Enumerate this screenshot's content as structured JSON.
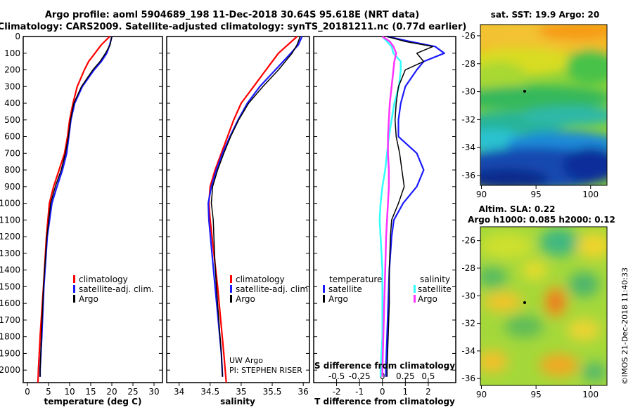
{
  "title": {
    "line1": "Argo profile: aoml 5904689_198 11-Dec-2018 30.64S 95.618E (NRT data)",
    "line2": "Climatology: CARS2009. Satellite-adjusted climatology: synTS_20181211.nc (0.77d earlier)"
  },
  "colors": {
    "climatology": "#ff0000",
    "satellite": "#1a1aff",
    "argo": "#000000",
    "sat_t": "#33ffff",
    "sat_s": "#ff33ff"
  },
  "chart_data": [
    {
      "type": "line",
      "name": "temperature",
      "xlabel": "temperature (deg C)",
      "xlim": [
        -1,
        32
      ],
      "ylim": [
        0,
        2075
      ],
      "xticks": [
        0,
        5,
        10,
        15,
        20,
        25,
        30
      ],
      "xtick_labels": [
        "0",
        "5",
        "10",
        "15",
        "20",
        "25",
        "30"
      ],
      "yticks": [
        0,
        100,
        200,
        300,
        400,
        500,
        600,
        700,
        800,
        900,
        1000,
        1100,
        1200,
        1300,
        1400,
        1500,
        1600,
        1700,
        1800,
        1900,
        2000
      ],
      "ytick_labels": [
        "0",
        "100",
        "200",
        "300",
        "400",
        "500",
        "600",
        "700",
        "800",
        "900",
        "1000",
        "1100",
        "1200",
        "1300",
        "1400",
        "1500",
        "1600",
        "1700",
        "1800",
        "1900",
        "2000"
      ],
      "legend": [
        "climatology",
        "satellite-adj. clim.",
        "Argo"
      ],
      "series": [
        {
          "name": "climatology",
          "depth": [
            0,
            50,
            100,
            150,
            200,
            300,
            400,
            500,
            600,
            700,
            800,
            900,
            1000,
            1200,
            1500,
            1800,
            2000,
            2075
          ],
          "values": [
            19.5,
            17.5,
            16.0,
            14.5,
            13.5,
            11.8,
            10.8,
            10.0,
            9.5,
            8.8,
            7.5,
            6.2,
            5.2,
            4.5,
            3.8,
            3.0,
            2.6,
            2.5
          ]
        },
        {
          "name": "satellite-adj. clim.",
          "depth": [
            0,
            50,
            100,
            150,
            200,
            300,
            400,
            500,
            600,
            700,
            800,
            900,
            1000,
            1200,
            1500,
            1800,
            2000,
            2040
          ],
          "values": [
            20.0,
            19.5,
            18.8,
            17.5,
            15.8,
            13.0,
            11.2,
            10.3,
            9.8,
            9.3,
            8.3,
            7.0,
            5.8,
            4.7,
            3.9,
            3.4,
            3.0,
            3.0
          ]
        },
        {
          "name": "Argo",
          "depth": [
            0,
            50,
            100,
            150,
            200,
            300,
            400,
            500,
            600,
            700,
            800,
            900,
            1000,
            1200,
            1500,
            1800,
            2000,
            2040
          ],
          "values": [
            20.0,
            19.6,
            18.5,
            17.2,
            15.5,
            12.8,
            11.0,
            10.2,
            9.7,
            9.0,
            8.0,
            6.6,
            5.5,
            4.6,
            3.8,
            3.3,
            3.0,
            3.0
          ]
        }
      ]
    },
    {
      "type": "line",
      "name": "salinity",
      "xlabel": "salinity",
      "xlim": [
        33.8,
        36.1
      ],
      "ylim": [
        0,
        2075
      ],
      "xticks": [
        34,
        34.5,
        35,
        35.5,
        36
      ],
      "xtick_labels": [
        "34",
        "34.5",
        "35",
        "35.5",
        "36"
      ],
      "legend": [
        "climatology",
        "satellite-adj. clim.",
        "Argo"
      ],
      "annotation": [
        "UW Argo",
        "PI: STEPHEN RISER"
      ],
      "series": [
        {
          "name": "climatology",
          "depth": [
            0,
            50,
            100,
            200,
            300,
            400,
            500,
            600,
            700,
            800,
            900,
            1000,
            1100,
            1300,
            1500,
            1700,
            1900,
            2075
          ],
          "values": [
            35.9,
            35.75,
            35.6,
            35.4,
            35.2,
            35.0,
            34.88,
            34.78,
            34.68,
            34.58,
            34.5,
            34.48,
            34.5,
            34.56,
            34.62,
            34.67,
            34.72,
            34.76
          ]
        },
        {
          "name": "satellite-adj. clim.",
          "depth": [
            0,
            50,
            100,
            200,
            300,
            400,
            500,
            600,
            700,
            800,
            900,
            1000,
            1100,
            1300,
            1500,
            1700,
            1900,
            2040
          ],
          "values": [
            35.98,
            35.92,
            35.8,
            35.55,
            35.3,
            35.1,
            34.95,
            34.82,
            34.7,
            34.6,
            34.52,
            34.47,
            34.48,
            34.53,
            34.58,
            34.63,
            34.68,
            34.7
          ]
        },
        {
          "name": "Argo",
          "depth": [
            0,
            50,
            100,
            200,
            300,
            400,
            500,
            600,
            700,
            800,
            900,
            1000,
            1100,
            1300,
            1500,
            1700,
            1900,
            2040
          ],
          "values": [
            35.95,
            35.9,
            35.82,
            35.6,
            35.35,
            35.12,
            34.96,
            34.83,
            34.72,
            34.62,
            34.54,
            34.52,
            34.55,
            34.57,
            34.6,
            34.64,
            34.68,
            34.7
          ]
        }
      ]
    },
    {
      "type": "line",
      "name": "difference",
      "xlabel": "T difference from climatology",
      "toplabel": "S difference from climatology",
      "xlim": [
        -3,
        3.2
      ],
      "ylim": [
        0,
        2075
      ],
      "xticks": [
        -2,
        -1,
        0,
        1,
        2
      ],
      "xtick_labels": [
        "-2",
        "-1",
        "0",
        "1",
        "2"
      ],
      "sticks": [
        -0.5,
        -0.25,
        0,
        0.25,
        0.5
      ],
      "stick_labels": [
        "-0.5",
        "-0.25",
        "0",
        "0.25",
        "0.5"
      ],
      "legend_t_title": "temperature",
      "legend_s_title": "salinity",
      "legend_labels": [
        "satellite",
        "Argo",
        "satellite",
        "Argo"
      ],
      "series": [
        {
          "name": "T satellite",
          "depth": [
            0,
            30,
            60,
            100,
            150,
            200,
            300,
            400,
            500,
            600,
            700,
            800,
            900,
            1000,
            1100,
            1200,
            1400,
            1600,
            1800,
            2000,
            2040
          ],
          "values": [
            0.2,
            1.2,
            2.3,
            2.7,
            1.8,
            1.5,
            1.0,
            0.8,
            0.7,
            0.7,
            1.5,
            1.8,
            1.5,
            0.9,
            0.5,
            0.4,
            0.3,
            0.25,
            0.2,
            0.15,
            0.15
          ]
        },
        {
          "name": "T Argo",
          "depth": [
            0,
            30,
            60,
            100,
            150,
            200,
            300,
            400,
            500,
            600,
            700,
            800,
            900,
            1000,
            1100,
            1200,
            1400,
            1600,
            1800,
            2000,
            2040
          ],
          "values": [
            0.2,
            1.0,
            2.2,
            1.5,
            1.8,
            1.0,
            0.7,
            0.6,
            0.55,
            0.6,
            0.75,
            0.85,
            0.95,
            0.7,
            0.4,
            0.35,
            0.3,
            0.3,
            0.25,
            0.2,
            0.2
          ]
        },
        {
          "name": "S satellite",
          "depth": [
            0,
            30,
            60,
            100,
            150,
            200,
            300,
            400,
            500,
            600,
            700,
            800,
            900,
            1000,
            1100,
            1200,
            1400,
            1600,
            1800,
            2000,
            2040
          ],
          "values": [
            0.0,
            0.05,
            0.1,
            0.12,
            0.2,
            0.2,
            0.18,
            0.13,
            0.1,
            0.07,
            0.05,
            0.03,
            0.0,
            -0.02,
            -0.03,
            -0.02,
            0.0,
            0.0,
            0.0,
            -0.02,
            -0.02
          ]
        },
        {
          "name": "S Argo",
          "depth": [
            0,
            30,
            60,
            100,
            150,
            200,
            300,
            400,
            500,
            600,
            700,
            800,
            900,
            1000,
            1100,
            1200,
            1400,
            1600,
            1800,
            2000,
            2040
          ],
          "values": [
            0.0,
            0.08,
            0.12,
            0.15,
            0.13,
            0.12,
            0.1,
            0.08,
            0.07,
            0.06,
            0.06,
            0.07,
            0.07,
            0.06,
            0.05,
            0.04,
            0.03,
            0.02,
            0.01,
            0.0,
            0.0
          ]
        }
      ]
    },
    {
      "type": "heatmap",
      "name": "satellite SST",
      "title": "sat. SST: 19.9 Argo: 20",
      "xlim": [
        89.9,
        101.5
      ],
      "ylim": [
        -36.7,
        -25.2
      ],
      "xticks": [
        90,
        95,
        100
      ],
      "xtick_labels": [
        "90",
        "95",
        "100"
      ],
      "yticks": [
        -26,
        -28,
        -30,
        -32,
        -34,
        -36
      ],
      "ytick_labels": [
        "-26",
        "-28",
        "-30",
        "-32",
        "-34",
        "-36"
      ]
    },
    {
      "type": "heatmap",
      "name": "altimetry SLA",
      "title1": "Altim. SLA: 0.22",
      "title2": "Argo h1000: 0.085 h2000: 0.12",
      "xlim": [
        89.9,
        101.5
      ],
      "ylim": [
        -36.5,
        -25.0
      ],
      "xticks": [
        90,
        95,
        100
      ],
      "xtick_labels": [
        "90",
        "95",
        "100"
      ],
      "yticks": [
        -26,
        -28,
        -30,
        -32,
        -34,
        -36
      ],
      "ytick_labels": [
        "-26",
        "-28",
        "-30",
        "-32",
        "-34",
        "-36"
      ]
    }
  ],
  "stamp": "©IMOS 21-Dec-2018 11:40:33"
}
